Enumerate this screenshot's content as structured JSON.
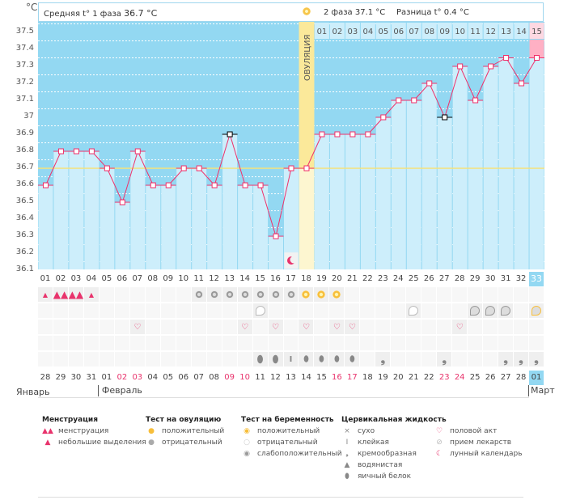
{
  "header": {
    "unit": "°C",
    "phase1_label": "Средняя t° 1 фаза",
    "phase1_value": "36.7 °C",
    "phase2_label": "2 фаза",
    "phase2_value": "37.1 °C",
    "diff_label": "Разница t°",
    "diff_value": "0.4 °C",
    "ovulation_label": "ОВУЛЯЦИЯ"
  },
  "colors": {
    "high_area": "#93d8f2",
    "bar": "#cdeefb",
    "line": "#f0306a",
    "coverline": "#f5e27a",
    "ovulation": "#fbe99a",
    "pregnant": "#ffb0c4",
    "accent": "#93d8f2"
  },
  "chart_data": {
    "type": "line",
    "title": "",
    "ylabel": "°C",
    "ylim": [
      36.1,
      37.56
    ],
    "yticks": [
      "37.5",
      "37.4",
      "37.3",
      "37.2",
      "37.1",
      "37",
      "36.9",
      "36.8",
      "36.7",
      "36.6",
      "36.5",
      "36.4",
      "36.3",
      "36.2",
      "36.1"
    ],
    "coverline": 36.7,
    "ovulation_day": 18,
    "cycle_days": [
      "01",
      "02",
      "03",
      "04",
      "05",
      "06",
      "07",
      "08",
      "09",
      "10",
      "11",
      "12",
      "13",
      "14",
      "15",
      "16",
      "17",
      "18",
      "19",
      "20",
      "21",
      "22",
      "23",
      "24",
      "25",
      "26",
      "27",
      "28",
      "29",
      "30",
      "31",
      "32",
      "33"
    ],
    "temperatures": [
      36.6,
      36.8,
      36.8,
      36.8,
      36.7,
      36.5,
      36.8,
      36.6,
      36.6,
      36.7,
      36.7,
      36.6,
      36.9,
      36.6,
      36.6,
      36.3,
      36.7,
      36.7,
      36.9,
      36.9,
      36.9,
      36.9,
      37.0,
      37.1,
      37.1,
      37.2,
      37.0,
      37.3,
      37.1,
      37.3,
      37.35,
      37.2,
      37.35
    ],
    "excluded_days": [
      13,
      27
    ],
    "phase2_days": [
      "01",
      "02",
      "03",
      "04",
      "05",
      "06",
      "07",
      "08",
      "09",
      "10",
      "11",
      "12",
      "13",
      "14",
      "15"
    ],
    "dates": [
      "28",
      "29",
      "30",
      "31",
      "01",
      "02",
      "03",
      "04",
      "05",
      "06",
      "07",
      "08",
      "09",
      "10",
      "11",
      "12",
      "13",
      "14",
      "15",
      "16",
      "17",
      "18",
      "19",
      "20",
      "21",
      "22",
      "23",
      "24",
      "25",
      "26",
      "27",
      "28",
      "01"
    ],
    "weekend_dates_idx": [
      5,
      6,
      12,
      13,
      19,
      20,
      26,
      27
    ],
    "months": [
      "Январь",
      "Февраль",
      "Март"
    ],
    "lunar_day": 17,
    "menstruation": {
      "1": "small",
      "2": "full",
      "3": "full",
      "4": "small"
    },
    "ovulation_test": {
      "11": "neg",
      "12": "neg",
      "13": "neg",
      "14": "neg",
      "15": "neg",
      "16": "neg",
      "17": "neg",
      "18": "pos",
      "19": "pos",
      "20": "pos"
    },
    "pregnancy_test": {
      "15": "neg",
      "25": "neg",
      "29": "weak",
      "30": "weak",
      "31": "weak",
      "33": "pos"
    },
    "intercourse": [
      7,
      14,
      16,
      18,
      20,
      21,
      28
    ],
    "cervical": {
      "15": "egg",
      "16": "egg",
      "17": "sticky",
      "18": "watery",
      "19": "watery",
      "20": "watery",
      "21": "watery",
      "23": "creamy",
      "27": "creamy",
      "31": "creamy",
      "32": "creamy",
      "33": "creamy"
    }
  },
  "legend": {
    "menstruation": {
      "title": "Менструация",
      "items": [
        "менструация",
        "небольшие выделения"
      ]
    },
    "ovulation_test": {
      "title": "Тест на овуляцию",
      "items": [
        "положительный",
        "отрицательный"
      ]
    },
    "pregnancy_test": {
      "title": "Тест на беременность",
      "items": [
        "положительный",
        "отрицательный",
        "слабоположительный"
      ]
    },
    "cervical": {
      "title": "Цервикальная жидкость",
      "items": [
        "сухо",
        "клейкая",
        "кремообразная",
        "водянистая",
        "яичный белок"
      ]
    },
    "other": {
      "items": [
        "половой акт",
        "прием лекарств",
        "лунный календарь"
      ]
    }
  }
}
